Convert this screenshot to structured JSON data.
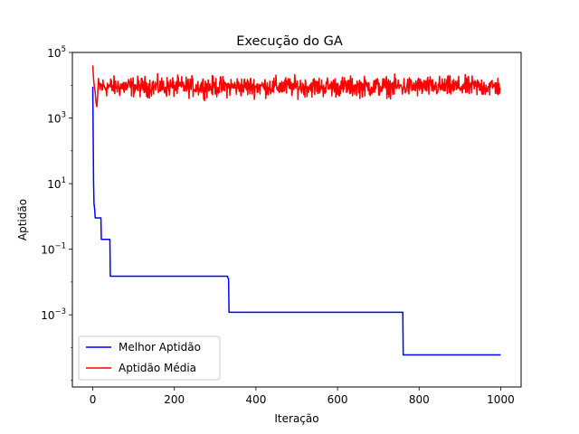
{
  "chart_data": {
    "type": "line",
    "title": "Execução do GA",
    "xlabel": "Iteração",
    "ylabel": "Aptidão",
    "yscale": "log",
    "xlim": [
      -50,
      1050
    ],
    "ylim_log10": [
      -5.2,
      5.0
    ],
    "xticks": [
      0,
      200,
      400,
      600,
      800,
      1000
    ],
    "yticks": [
      {
        "exp": 5,
        "base": "10",
        "sup": "5"
      },
      {
        "exp": 3,
        "base": "10",
        "sup": "3"
      },
      {
        "exp": 1,
        "base": "10",
        "sup": "1"
      },
      {
        "exp": -1,
        "base": "10",
        "sup": "−1"
      },
      {
        "exp": -3,
        "base": "10",
        "sup": "−3"
      }
    ],
    "grid": false,
    "legend_position": "lower-left",
    "series": [
      {
        "name": "Melhor Aptidão",
        "color": "#0000ff",
        "points": [
          [
            0,
            9000
          ],
          [
            1,
            300
          ],
          [
            2,
            10
          ],
          [
            3,
            2.5
          ],
          [
            5,
            1.5
          ],
          [
            6,
            0.9
          ],
          [
            20,
            0.9
          ],
          [
            21,
            0.2
          ],
          [
            42,
            0.2
          ],
          [
            43,
            0.015
          ],
          [
            330,
            0.015
          ],
          [
            333,
            0.012
          ],
          [
            334,
            0.0012
          ],
          [
            760,
            0.0012
          ],
          [
            761,
            6e-05
          ],
          [
            1000,
            6e-05
          ]
        ]
      },
      {
        "name": "Aptidão Média",
        "color": "#ff0000",
        "generated": true,
        "start": [
          [
            0,
            40000
          ],
          [
            2,
            15000
          ],
          [
            4,
            9000
          ],
          [
            6,
            6000
          ],
          [
            8,
            3000
          ],
          [
            10,
            2200
          ],
          [
            12,
            5000
          ]
        ],
        "n": 1000,
        "center": 9000,
        "spread_log10": 0.28
      }
    ]
  }
}
